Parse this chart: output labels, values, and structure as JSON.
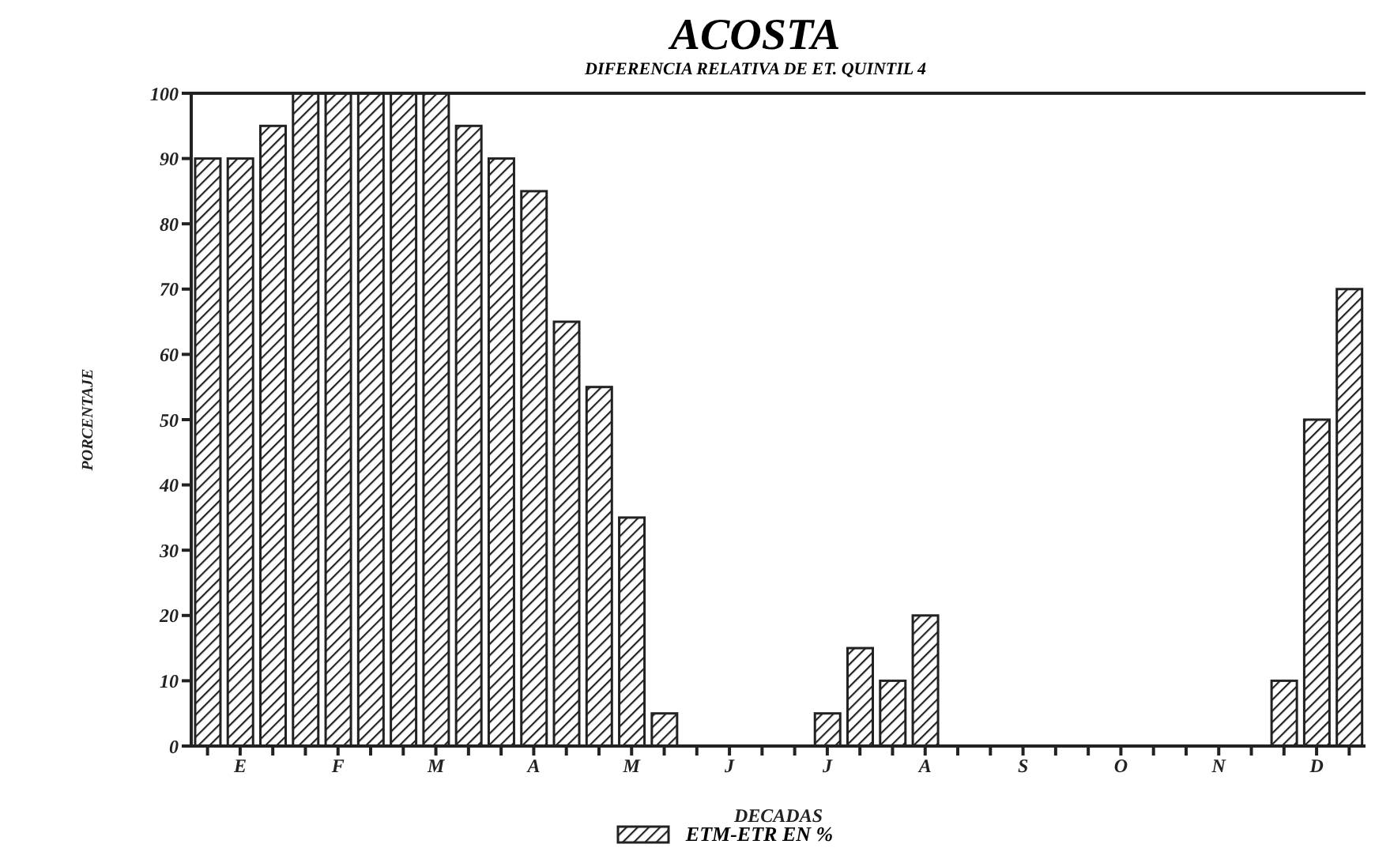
{
  "chart_data": {
    "type": "bar",
    "title": "ACOSTA",
    "subtitle": "DIFERENCIA RELATIVA DE ET. QUINTIL 4",
    "xlabel": "DECADAS",
    "ylabel": "PORCENTAJE",
    "categories": [
      null,
      "E",
      null,
      null,
      "F",
      null,
      null,
      "M",
      null,
      null,
      "A",
      null,
      null,
      "M",
      null,
      null,
      "J",
      null,
      null,
      "J",
      null,
      null,
      "A",
      null,
      null,
      "S",
      null,
      null,
      "O",
      null,
      null,
      "N",
      null,
      null,
      "D",
      null
    ],
    "series": [
      {
        "name": "ETM-ETR EN %",
        "color": "#222222",
        "values": [
          90,
          90,
          95,
          100,
          100,
          100,
          100,
          100,
          95,
          90,
          85,
          65,
          55,
          35,
          5,
          0,
          0,
          0,
          0,
          5,
          15,
          10,
          20,
          0,
          0,
          0,
          0,
          0,
          0,
          0,
          0,
          0,
          0,
          10,
          50,
          70
        ]
      }
    ],
    "ylim": [
      0,
      100
    ],
    "yticks": [
      0,
      10,
      20,
      30,
      40,
      50,
      60,
      70,
      80,
      90,
      100
    ],
    "legend": "bottom"
  }
}
